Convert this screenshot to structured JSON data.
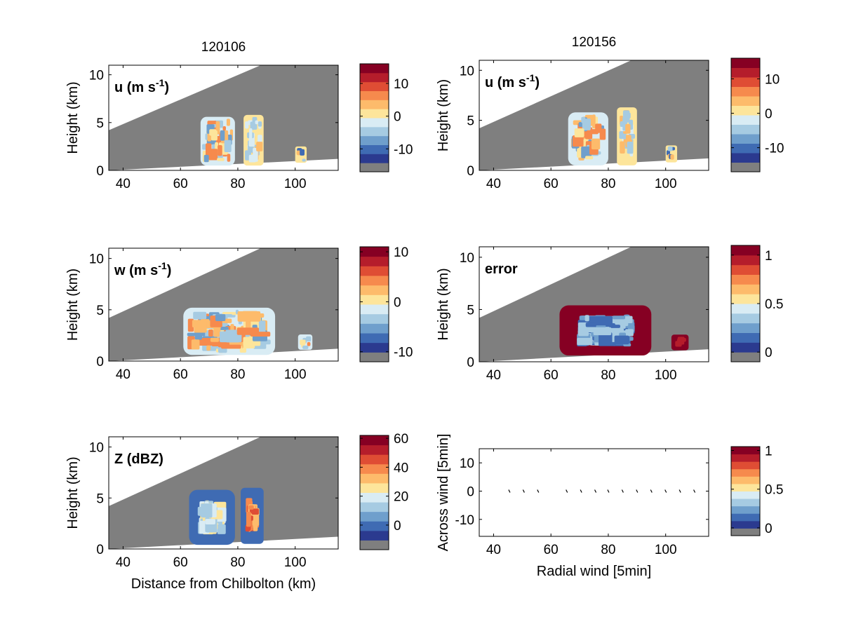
{
  "colormap": [
    "#2b3a8f",
    "#3f6bb3",
    "#6f9fcc",
    "#a6cbe2",
    "#d9ecf4",
    "#fde59b",
    "#fdbb6b",
    "#f68a4d",
    "#df4d34",
    "#b51d2b",
    "#860023"
  ],
  "mask_color": "#7f7f7f",
  "chart_data": [
    {
      "id": "u-left",
      "type": "heatmap",
      "title": "120106",
      "label": "u (m s",
      "label_sup": "-1",
      "label_tail": ")",
      "xlabel": "",
      "ylabel": "Height (km)",
      "xlim": [
        35,
        115
      ],
      "ylim": [
        0,
        11
      ],
      "xticks": [
        "40",
        "60",
        "80",
        "100"
      ],
      "yticks": [
        "0",
        "5",
        "10"
      ],
      "colorbar": {
        "range": [
          -17,
          16
        ],
        "ticks": [
          "10",
          "0",
          "-10"
        ],
        "tick_values": [
          10,
          0,
          -10
        ]
      },
      "cells": [
        {
          "x": [
            67,
            79
          ],
          "y": [
            0.5,
            5.6
          ],
          "dominant": "light"
        },
        {
          "x": [
            82,
            89
          ],
          "y": [
            0.5,
            5.8
          ],
          "dominant": "yellow"
        },
        {
          "x": [
            100,
            104
          ],
          "y": [
            0.8,
            2.5
          ],
          "dominant": "mixed"
        }
      ]
    },
    {
      "id": "u-right",
      "type": "heatmap",
      "title": "120156",
      "label": "u (m s",
      "label_sup": "-1",
      "label_tail": ")",
      "xlabel": "",
      "ylabel": "Height (km)",
      "xlim": [
        35,
        115
      ],
      "ylim": [
        0,
        11
      ],
      "xticks": [
        "40",
        "60",
        "80",
        "100"
      ],
      "yticks": [
        "0",
        "5",
        "10"
      ],
      "colorbar": {
        "range": [
          -17,
          16
        ],
        "ticks": [
          "10",
          "0",
          "-10"
        ],
        "tick_values": [
          10,
          0,
          -10
        ]
      },
      "cells": [
        {
          "x": [
            66,
            80
          ],
          "y": [
            0.5,
            5.8
          ],
          "dominant": "light"
        },
        {
          "x": [
            83,
            90
          ],
          "y": [
            0.5,
            6.3
          ],
          "dominant": "yellow"
        },
        {
          "x": [
            100,
            104
          ],
          "y": [
            0.8,
            2.5
          ],
          "dominant": "mixed"
        }
      ]
    },
    {
      "id": "w-left",
      "type": "heatmap",
      "title": "",
      "label": "w (m s",
      "label_sup": "-1",
      "label_tail": ")",
      "xlabel": "",
      "ylabel": "Height (km)",
      "xlim": [
        35,
        115
      ],
      "ylim": [
        0,
        11
      ],
      "xticks": [
        "40",
        "60",
        "80",
        "100"
      ],
      "yticks": [
        "0",
        "5",
        "10"
      ],
      "colorbar": {
        "range": [
          -12,
          11
        ],
        "ticks": [
          "10",
          "0",
          "-10"
        ],
        "tick_values": [
          10,
          0,
          -10
        ]
      },
      "cells": [
        {
          "x": [
            61,
            93
          ],
          "y": [
            0.6,
            5.2
          ],
          "dominant": "light"
        },
        {
          "x": [
            101,
            106
          ],
          "y": [
            1.1,
            2.6
          ],
          "dominant": "light"
        }
      ]
    },
    {
      "id": "error",
      "type": "heatmap",
      "title": "",
      "label": "error",
      "label_sup": "",
      "label_tail": "",
      "xlabel": "",
      "ylabel": "Height (km)",
      "xlim": [
        35,
        115
      ],
      "ylim": [
        0,
        11
      ],
      "xticks": [
        "40",
        "60",
        "80",
        "100"
      ],
      "yticks": [
        "0",
        "5",
        "10"
      ],
      "colorbar": {
        "range": [
          -0.1,
          1.1
        ],
        "ticks": [
          "1",
          "0.5",
          "0"
        ],
        "tick_values": [
          1,
          0.5,
          0
        ]
      },
      "cells": [
        {
          "x": [
            63,
            95
          ],
          "y": [
            0.6,
            5.4
          ],
          "dominant": "red-edge-blue-core"
        },
        {
          "x": [
            102,
            108
          ],
          "y": [
            1.1,
            2.6
          ],
          "dominant": "red"
        }
      ]
    },
    {
      "id": "z-left",
      "type": "heatmap",
      "title": "",
      "label": "Z (dBZ)",
      "label_sup": "",
      "label_tail": "",
      "xlabel": "Distance from Chilbolton (km)",
      "ylabel": "Height (km)",
      "xlim": [
        35,
        115
      ],
      "ylim": [
        0,
        11
      ],
      "xticks": [
        "40",
        "60",
        "80",
        "100"
      ],
      "yticks": [
        "0",
        "5",
        "10"
      ],
      "colorbar": {
        "range": [
          -17,
          62
        ],
        "ticks": [
          "60",
          "40",
          "20",
          "0"
        ],
        "tick_values": [
          60,
          40,
          20,
          0
        ]
      },
      "cells": [
        {
          "x": [
            63,
            79
          ],
          "y": [
            0.4,
            5.8
          ],
          "dominant": "blue-edge-yellow-core"
        },
        {
          "x": [
            81,
            89
          ],
          "y": [
            0.5,
            6.0
          ],
          "dominant": "blue-edge-orange-core"
        }
      ]
    },
    {
      "id": "quiver",
      "type": "scatter",
      "title": "",
      "label": "",
      "label_sup": "",
      "label_tail": "",
      "xlabel": "Radial wind [5min]",
      "ylabel": "Across wind [5min]",
      "xlim": [
        35,
        115
      ],
      "ylim": [
        -16,
        15
      ],
      "xticks": [
        "40",
        "60",
        "80",
        "100"
      ],
      "yticks": [
        "10",
        "0",
        "-10"
      ],
      "colorbar": {
        "range": [
          -0.1,
          1.05
        ],
        "ticks": [
          "1",
          "0.5",
          "0"
        ],
        "tick_values": [
          1,
          0.5,
          0
        ]
      },
      "points": [
        {
          "x": 45.5,
          "y": 0
        },
        {
          "x": 50.5,
          "y": 0
        },
        {
          "x": 55.5,
          "y": 0
        },
        {
          "x": 65.5,
          "y": 0
        },
        {
          "x": 70.5,
          "y": 0
        },
        {
          "x": 75.5,
          "y": 0
        },
        {
          "x": 80,
          "y": 0
        },
        {
          "x": 85,
          "y": 0
        },
        {
          "x": 90,
          "y": 0
        },
        {
          "x": 95,
          "y": 0
        },
        {
          "x": 100,
          "y": 0
        },
        {
          "x": 105,
          "y": 0
        },
        {
          "x": 110,
          "y": 0
        }
      ]
    }
  ]
}
